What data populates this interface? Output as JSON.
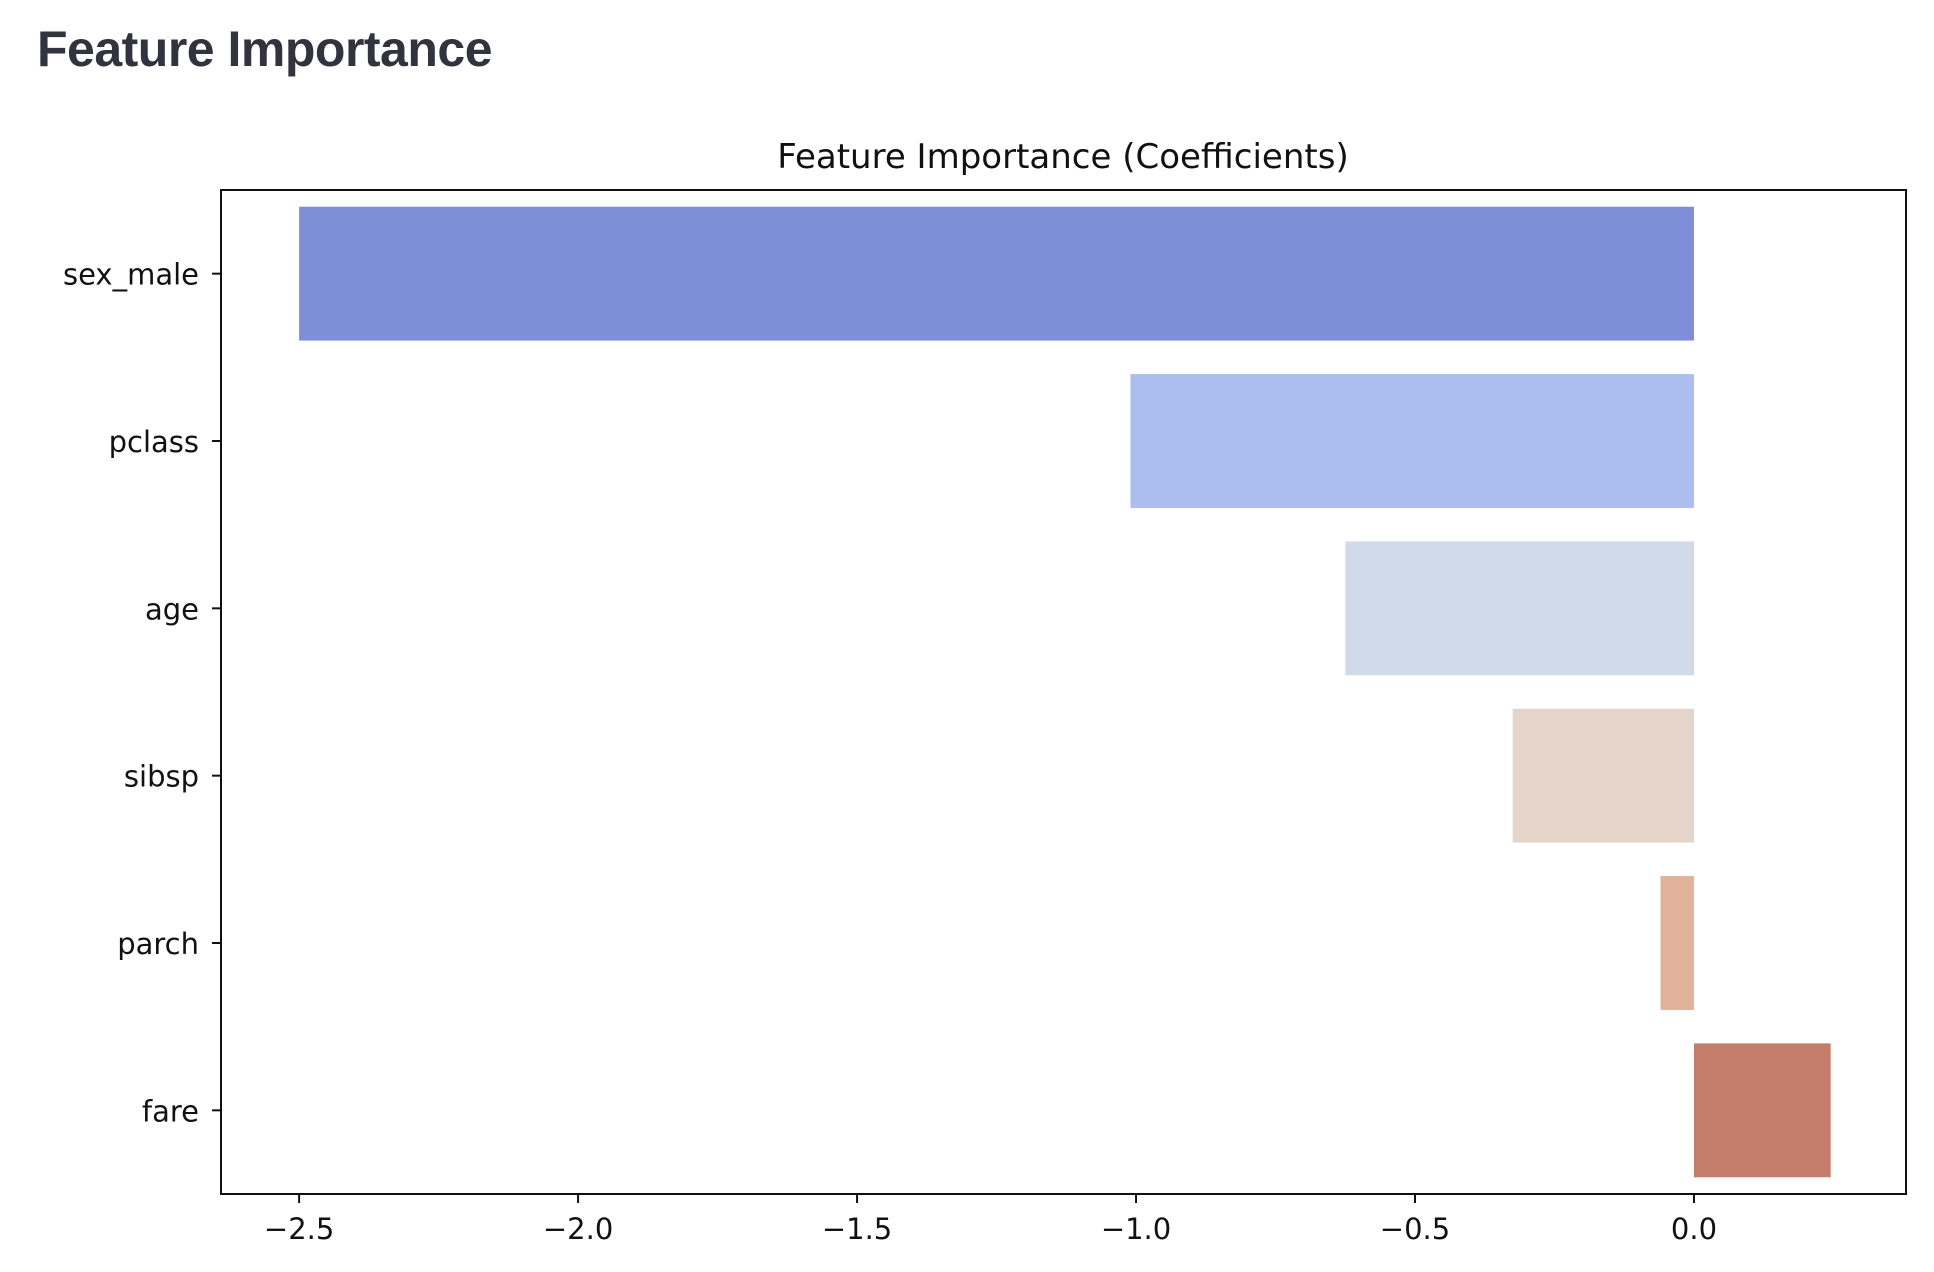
{
  "page": {
    "heading": "Feature Importance"
  },
  "chart_data": {
    "type": "bar",
    "orientation": "horizontal",
    "title": "Feature Importance (Coefficients)",
    "xlabel": "",
    "ylabel": "",
    "categories": [
      "sex_male",
      "pclass",
      "age",
      "sibsp",
      "parch",
      "fare"
    ],
    "values": [
      -2.5,
      -1.01,
      -0.625,
      -0.325,
      -0.06,
      0.245
    ],
    "bar_colors": [
      "#7e8fd8",
      "#acbeee",
      "#d0dae9",
      "#e4d4ca",
      "#e2b19a",
      "#c47c6b"
    ],
    "xlim": [
      -2.64,
      0.38
    ],
    "xticks": [
      -2.5,
      -2.0,
      -1.5,
      -1.0,
      -0.5,
      0.0
    ],
    "xtick_labels": [
      "−2.5",
      "−2.0",
      "−1.5",
      "−1.0",
      "−0.5",
      "0.0"
    ],
    "grid": false,
    "legend": "none"
  }
}
